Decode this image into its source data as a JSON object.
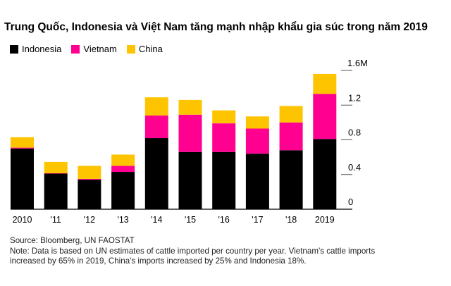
{
  "chart_data": {
    "type": "bar",
    "stacked": true,
    "title": "Trung Quốc, Indonesia và Việt Nam tăng mạnh nhập khẩu gia súc trong năm 2019",
    "categories": [
      "2010",
      "'11",
      "'12",
      "'13",
      "'14",
      "'15",
      "'16",
      "'17",
      "'18",
      "2019"
    ],
    "series": [
      {
        "name": "Indonesia",
        "color": "#000000",
        "values": [
          0.7,
          0.41,
          0.34,
          0.43,
          0.82,
          0.66,
          0.66,
          0.64,
          0.68,
          0.81
        ]
      },
      {
        "name": "Vietnam",
        "color": "#ff0090",
        "values": [
          0.01,
          0.005,
          0.01,
          0.07,
          0.26,
          0.43,
          0.33,
          0.29,
          0.32,
          0.52
        ]
      },
      {
        "name": "China",
        "color": "#ffc400",
        "values": [
          0.12,
          0.13,
          0.15,
          0.13,
          0.21,
          0.17,
          0.15,
          0.14,
          0.19,
          0.23
        ]
      }
    ],
    "ylim": [
      0,
      1.6
    ],
    "yticks": [
      0,
      0.4,
      0.8,
      1.2,
      1.6
    ],
    "ytick_labels": [
      "0",
      "0.4",
      "0.8",
      "1.2",
      "1.6M"
    ],
    "y_axis_position": "right",
    "legend": "top-left",
    "grid": false
  },
  "notes": {
    "source": "Source: Bloomberg, UN FAOSTAT",
    "note_line1": "Note: Data is based on UN estimates of cattle imported per country per year. Vietnam's cattle imports",
    "note_line2": "increased by 65% in 2019, China's imports increased by 25% and Indonesia 18%."
  }
}
